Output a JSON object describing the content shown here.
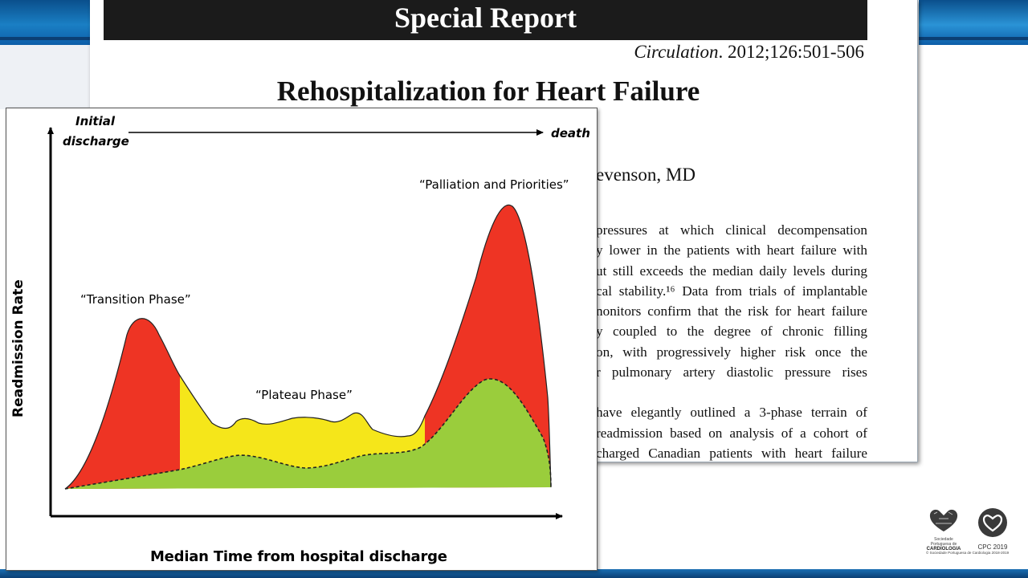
{
  "paper": {
    "banner": "Special Report",
    "citation_journal": "Circulation",
    "citation_rest": ". 2012;126:501-506",
    "title": "Rehospitalization for Heart Failure",
    "author_fragment": "evenson, MD",
    "body_lines": [
      "pressures at which clinical decompensation",
      "y lower in the patients with heart failure with",
      "ut still exceeds the median daily levels during",
      "cal stability.¹⁶ Data from trials of implantable",
      "nonitors confirm that the risk for heart failure",
      "y coupled to the degree of chronic filling",
      "on, with progressively higher risk once the",
      "r pulmonary artery diastolic pressure rises"
    ],
    "body_lines_2": [
      "have elegantly outlined a 3-phase terrain of",
      "readmission based on analysis of a cohort of",
      "charged Canadian patients with heart failure"
    ]
  },
  "diagram": {
    "top_left_label_1": "Initial",
    "top_left_label_2": "discharge",
    "top_right_label": "death",
    "y_axis_label": "Readmission Rate",
    "x_axis_label": "Median Time from hospital discharge",
    "phases": [
      {
        "label": "“Transition Phase”",
        "color": "#ee3424"
      },
      {
        "label": "“Plateau Phase”",
        "color": "#f5e61a"
      },
      {
        "label": "“Palliation and Priorities”",
        "color": "#ee3424"
      }
    ],
    "baseline_color": "#9acd3c"
  },
  "logos": {
    "spc_line1": "Sociedade Portuguesa de",
    "spc_line2": "CARDIOLOGIA",
    "cpc": "CPC 2019",
    "footer": "© Sociedade Portuguesa de Cardiologia 2018-2019"
  }
}
